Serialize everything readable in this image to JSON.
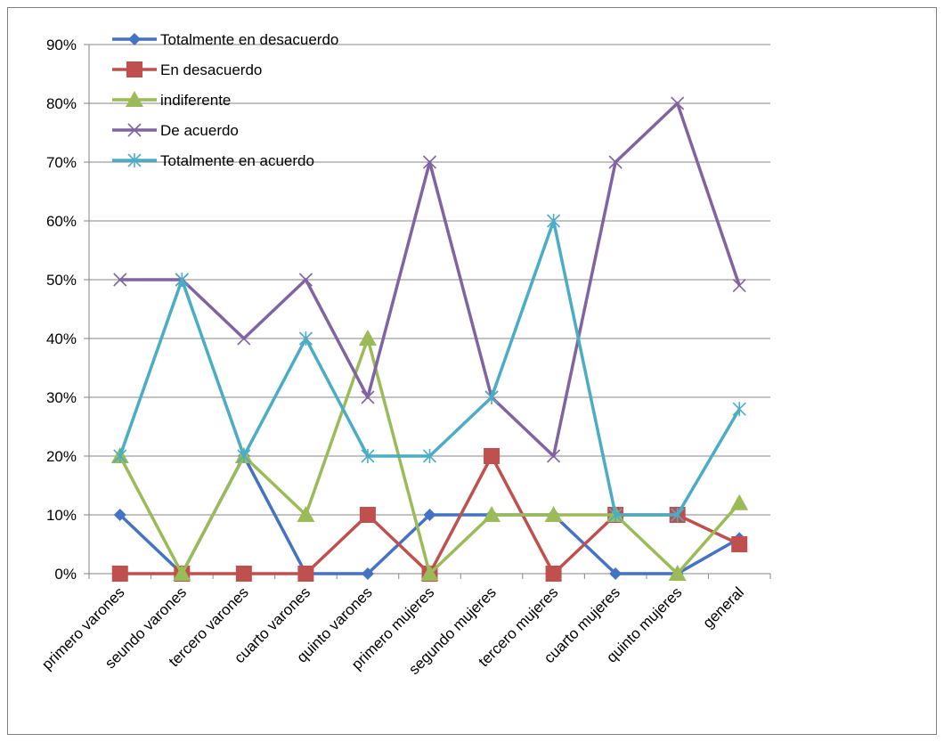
{
  "chart_data": {
    "type": "line",
    "title": "",
    "xlabel": "",
    "ylabel": "",
    "ylim": [
      0,
      0.9
    ],
    "ytick_step": 0.1,
    "ytick_format": "percent",
    "grid": "horizontal",
    "legend_position": "top-left inside plot",
    "categories": [
      "primero varones",
      "seundo varones",
      "tercero varones",
      "cuarto varones",
      "quinto varones",
      "primero mujeres",
      "segundo mujeres",
      "tercero mujeres",
      "cuarto mujeres",
      "quinto mujeres",
      "general"
    ],
    "series": [
      {
        "name": "Totalmente en desacuerdo",
        "color": "#4472c4",
        "marker": "diamond",
        "values": [
          0.1,
          0.0,
          0.2,
          0.0,
          0.0,
          0.1,
          0.1,
          0.1,
          0.0,
          0.0,
          0.06
        ]
      },
      {
        "name": "En desacuerdo",
        "color": "#c0504d",
        "marker": "square",
        "values": [
          0.0,
          0.0,
          0.0,
          0.0,
          0.1,
          0.0,
          0.2,
          0.0,
          0.1,
          0.1,
          0.05
        ]
      },
      {
        "name": "indiferente",
        "color": "#9bbb59",
        "marker": "triangle",
        "values": [
          0.2,
          0.0,
          0.2,
          0.1,
          0.4,
          0.0,
          0.1,
          0.1,
          0.1,
          0.0,
          0.12
        ]
      },
      {
        "name": "De acuerdo",
        "color": "#8064a2",
        "marker": "x",
        "values": [
          0.5,
          0.5,
          0.4,
          0.5,
          0.3,
          0.7,
          0.3,
          0.2,
          0.7,
          0.8,
          0.49
        ]
      },
      {
        "name": "Totalmente en acuerdo",
        "color": "#4bacc6",
        "marker": "star",
        "values": [
          0.2,
          0.5,
          0.2,
          0.4,
          0.2,
          0.2,
          0.3,
          0.6,
          0.1,
          0.1,
          0.28
        ]
      }
    ]
  }
}
